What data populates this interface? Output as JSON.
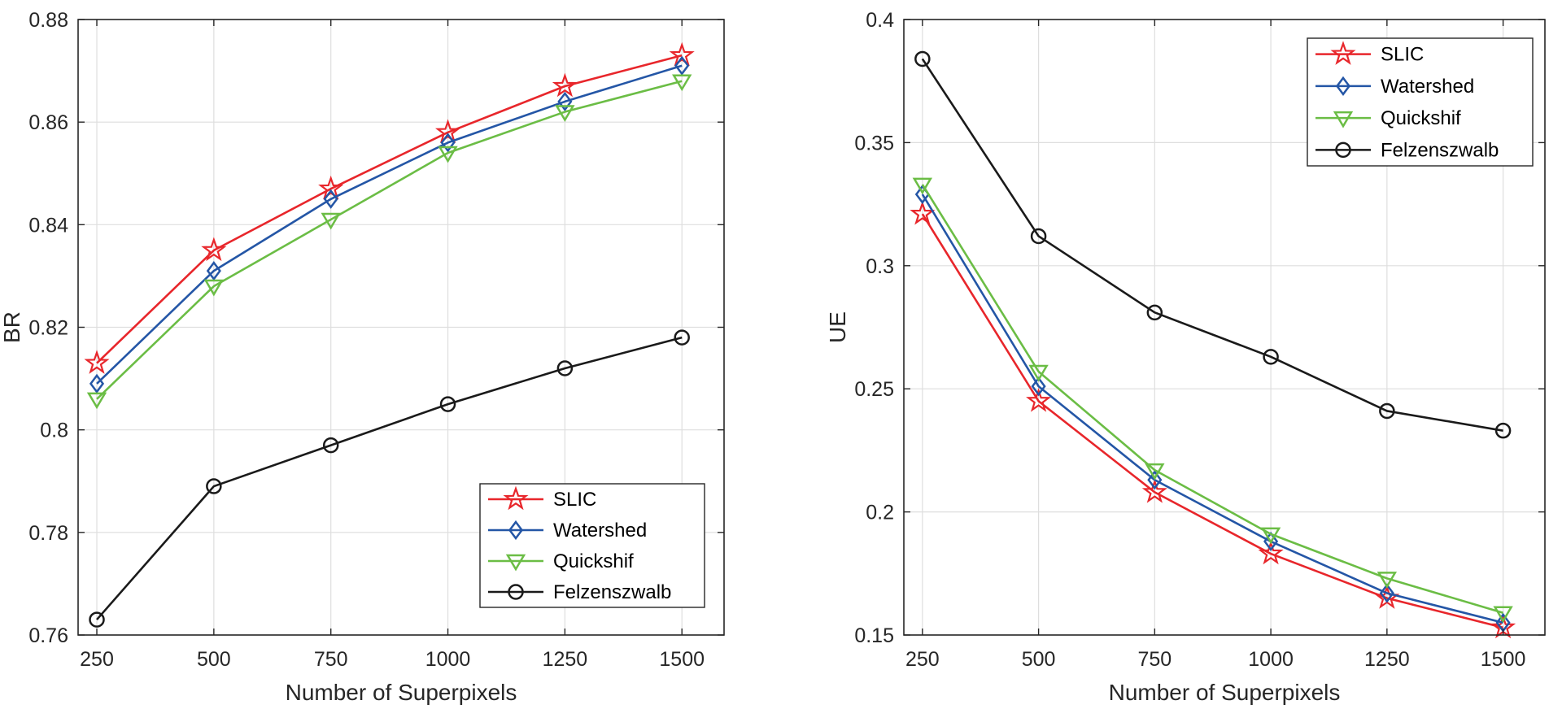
{
  "chart_data": [
    {
      "type": "line",
      "title": "",
      "xlabel": "Number of Superpixels",
      "ylabel": "BR",
      "x": [
        250,
        500,
        750,
        1000,
        1250,
        1500
      ],
      "xticks": [
        "250",
        "500",
        "750",
        "1000",
        "1250",
        "1500"
      ],
      "xlim": [
        210,
        1590
      ],
      "ylim": [
        0.76,
        0.88
      ],
      "yticks": [
        "0.76",
        "0.78",
        "0.8",
        "0.82",
        "0.84",
        "0.86",
        "0.88"
      ],
      "ytick_values": [
        0.76,
        0.78,
        0.8,
        0.82,
        0.84,
        0.86,
        0.88
      ],
      "grid": true,
      "legend_position": "bottom-right",
      "series": [
        {
          "name": "SLIC",
          "marker": "star",
          "color": "#e8262b",
          "values": [
            0.813,
            0.835,
            0.847,
            0.858,
            0.867,
            0.873
          ]
        },
        {
          "name": "Watershed",
          "marker": "diamond",
          "color": "#2456a6",
          "values": [
            0.809,
            0.831,
            0.845,
            0.856,
            0.864,
            0.871
          ]
        },
        {
          "name": "Quickshif",
          "marker": "triangle-down",
          "color": "#6bbd45",
          "values": [
            0.806,
            0.828,
            0.841,
            0.854,
            0.862,
            0.868
          ]
        },
        {
          "name": "Felzenszwalb",
          "marker": "circle",
          "color": "#1a1a1a",
          "values": [
            0.763,
            0.789,
            0.797,
            0.805,
            0.812,
            0.818
          ]
        }
      ]
    },
    {
      "type": "line",
      "title": "",
      "xlabel": "Number of Superpixels",
      "ylabel": "UE",
      "x": [
        250,
        500,
        750,
        1000,
        1250,
        1500
      ],
      "xticks": [
        "250",
        "500",
        "750",
        "1000",
        "1250",
        "1500"
      ],
      "xlim": [
        210,
        1590
      ],
      "ylim": [
        0.15,
        0.4
      ],
      "yticks": [
        "0.15",
        "0.2",
        "0.25",
        "0.3",
        "0.35",
        "0.4"
      ],
      "ytick_values": [
        0.15,
        0.2,
        0.25,
        0.3,
        0.35,
        0.4
      ],
      "grid": true,
      "legend_position": "top-right",
      "series": [
        {
          "name": "SLIC",
          "marker": "star",
          "color": "#e8262b",
          "values": [
            0.321,
            0.245,
            0.208,
            0.183,
            0.165,
            0.153
          ]
        },
        {
          "name": "Watershed",
          "marker": "diamond",
          "color": "#2456a6",
          "values": [
            0.329,
            0.251,
            0.213,
            0.188,
            0.167,
            0.155
          ]
        },
        {
          "name": "Quickshif",
          "marker": "triangle-down",
          "color": "#6bbd45",
          "values": [
            0.333,
            0.257,
            0.217,
            0.191,
            0.173,
            0.159
          ]
        },
        {
          "name": "Felzenszwalb",
          "marker": "circle",
          "color": "#1a1a1a",
          "values": [
            0.384,
            0.312,
            0.281,
            0.263,
            0.241,
            0.233
          ]
        }
      ]
    }
  ]
}
